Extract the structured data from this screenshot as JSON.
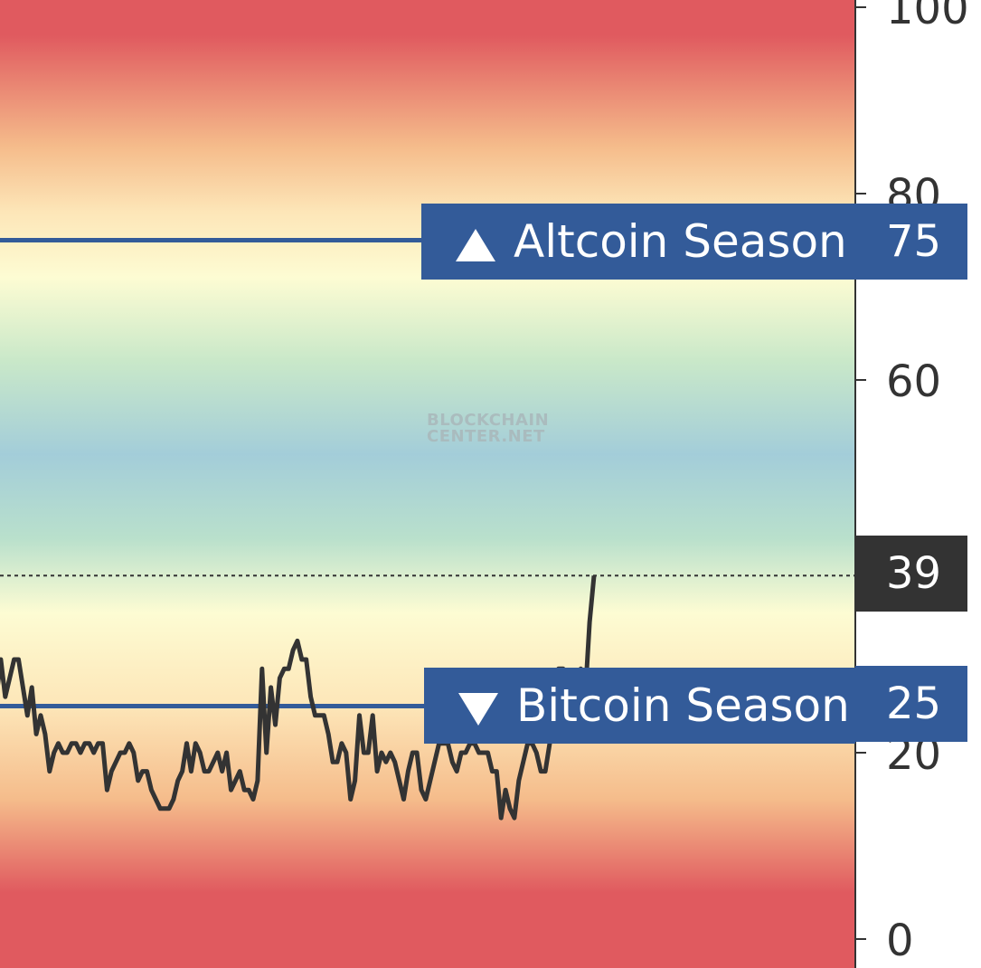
{
  "chart_data": {
    "type": "line",
    "title": "",
    "xlabel": "",
    "ylabel": "",
    "ylim": [
      0,
      100
    ],
    "yticks": [
      0,
      20,
      40,
      60,
      80,
      100
    ],
    "ytick_labels": [
      "0",
      "20",
      "60",
      "80",
      "100"
    ],
    "current_value": 39,
    "current_value_label": "39",
    "thresholds": [
      {
        "name": "Altcoin Season",
        "value": 75,
        "label": "Altcoin Season",
        "value_label": "75",
        "direction": "up"
      },
      {
        "name": "Bitcoin Season",
        "value": 25,
        "label": "Bitcoin Season",
        "value_label": "25",
        "direction": "down"
      }
    ],
    "series": [
      {
        "values": [
          26,
          30,
          26,
          28,
          30,
          30,
          27,
          24,
          27,
          22,
          24,
          22,
          18,
          20,
          21,
          20,
          20,
          21,
          21,
          20,
          21,
          21,
          20,
          21,
          21,
          16,
          18,
          19,
          20,
          20,
          21,
          20,
          17,
          18,
          18,
          16,
          15,
          14,
          14,
          14,
          15,
          17,
          18,
          21,
          18,
          21,
          20,
          18,
          18,
          19,
          20,
          18,
          20,
          16,
          17,
          18,
          16,
          16,
          15,
          17,
          29,
          20,
          27,
          23,
          28,
          29,
          29,
          31,
          32,
          30,
          30,
          26,
          24,
          24,
          24,
          22,
          19,
          19,
          21,
          20,
          15,
          17,
          24,
          20,
          20,
          24,
          18,
          20,
          19,
          20,
          19,
          17,
          15,
          18,
          20,
          20,
          16,
          15,
          17,
          19,
          21,
          21,
          21,
          19,
          18,
          20,
          20,
          21,
          21,
          20,
          20,
          20,
          18,
          18,
          13,
          16,
          14,
          13,
          17,
          19,
          21,
          21,
          20,
          18,
          18,
          21,
          24,
          29,
          29,
          25,
          25,
          24,
          29,
          26,
          34,
          39
        ],
        "stroke": "#333333"
      }
    ],
    "colors": {
      "line": "#333333",
      "threshold": "#335b99",
      "value_box": "#333333",
      "axis": "#333333",
      "gradient_stops": [
        {
          "value": 100,
          "color": "#e05a5f"
        },
        {
          "value": 97,
          "color": "#e05a5f"
        },
        {
          "value": 85,
          "color": "#f5bc8b"
        },
        {
          "value": 78,
          "color": "#fde6b8"
        },
        {
          "value": 71,
          "color": "#fdfcd3"
        },
        {
          "value": 62,
          "color": "#c9e8c9"
        },
        {
          "value": 52,
          "color": "#a3cdd9"
        },
        {
          "value": 43,
          "color": "#b9e0cc"
        },
        {
          "value": 35,
          "color": "#fdfcd3"
        },
        {
          "value": 25,
          "color": "#fde6b8"
        },
        {
          "value": 15,
          "color": "#f5bc8b"
        },
        {
          "value": 5,
          "color": "#e05a5f"
        },
        {
          "value": 0,
          "color": "#e05a5f"
        }
      ]
    },
    "watermark": [
      "BLOCKCHAIN",
      "CENTER.NET"
    ]
  }
}
